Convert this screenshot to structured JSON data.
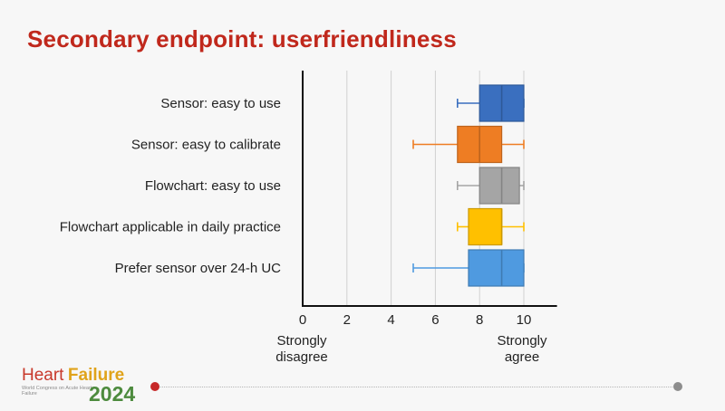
{
  "title": "Secondary endpoint: userfriendliness",
  "logo": {
    "heart": "Heart",
    "failure": "Failure",
    "small_text": "World Congress on Acute Heart Failure",
    "year": "2024"
  },
  "chart_data": {
    "type": "box",
    "categories": [
      "Sensor: easy to use",
      "Sensor: easy to calibrate",
      "Flowchart: easy to use",
      "Flowchart applicable in daily practice",
      "Prefer sensor over 24-h UC"
    ],
    "boxes": [
      {
        "min": 7,
        "q1": 8,
        "median": 9,
        "q3": 10,
        "max": 10,
        "color": "#3a6fbf"
      },
      {
        "min": 5,
        "q1": 7,
        "median": 8,
        "q3": 9,
        "max": 10,
        "color": "#ee7d23"
      },
      {
        "min": 7,
        "q1": 8,
        "median": 9,
        "q3": 9.8,
        "max": 10,
        "color": "#a5a5a5"
      },
      {
        "min": 7,
        "q1": 7.5,
        "median": 9,
        "q3": 9,
        "max": 10,
        "color": "#ffc000"
      },
      {
        "min": 5,
        "q1": 7.5,
        "median": 9,
        "q3": 10,
        "max": 10,
        "color": "#4f9ae0"
      }
    ],
    "xlim": [
      0,
      11.5
    ],
    "xticks": [
      0,
      2,
      4,
      6,
      8,
      10
    ],
    "grid": true,
    "annotations": {
      "low": "Strongly disagree",
      "high": "Strongly agree"
    }
  }
}
